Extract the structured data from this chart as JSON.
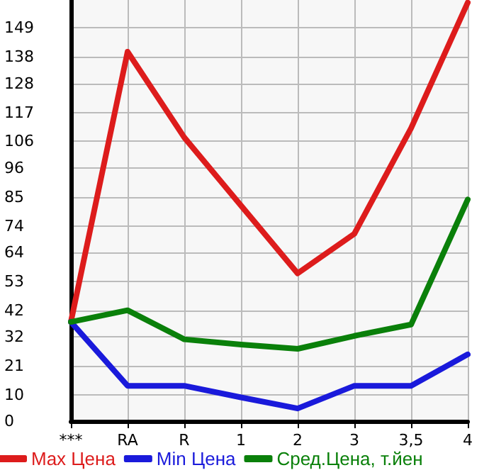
{
  "chart_data": {
    "type": "line",
    "categories": [
      "***",
      "RA",
      "R",
      "1",
      "2",
      "3",
      "3,5",
      "4"
    ],
    "series": [
      {
        "name": "Max Цена",
        "color": "#dd1c1c",
        "values": [
          37.6,
          140,
          107.5,
          81.7,
          56,
          71,
          111,
          158.6
        ]
      },
      {
        "name": "Min Цена",
        "color": "#1a1adb",
        "values": [
          37.6,
          13.4,
          13.4,
          9,
          4.8,
          13.4,
          13.4,
          25.3
        ]
      },
      {
        "name": "Сред.Цена, т.йен",
        "color": "#0a800a",
        "values": [
          37.6,
          42,
          31,
          29,
          27.4,
          32.3,
          36.6,
          84
        ]
      }
    ],
    "ylim": [
      0,
      159.6
    ],
    "yticks": [
      0,
      10,
      21,
      32,
      42,
      53,
      64,
      74,
      85,
      96,
      106,
      117,
      128,
      138,
      149
    ],
    "grid": true,
    "legend": "bottom",
    "marker": "none",
    "line_style": "solid"
  }
}
